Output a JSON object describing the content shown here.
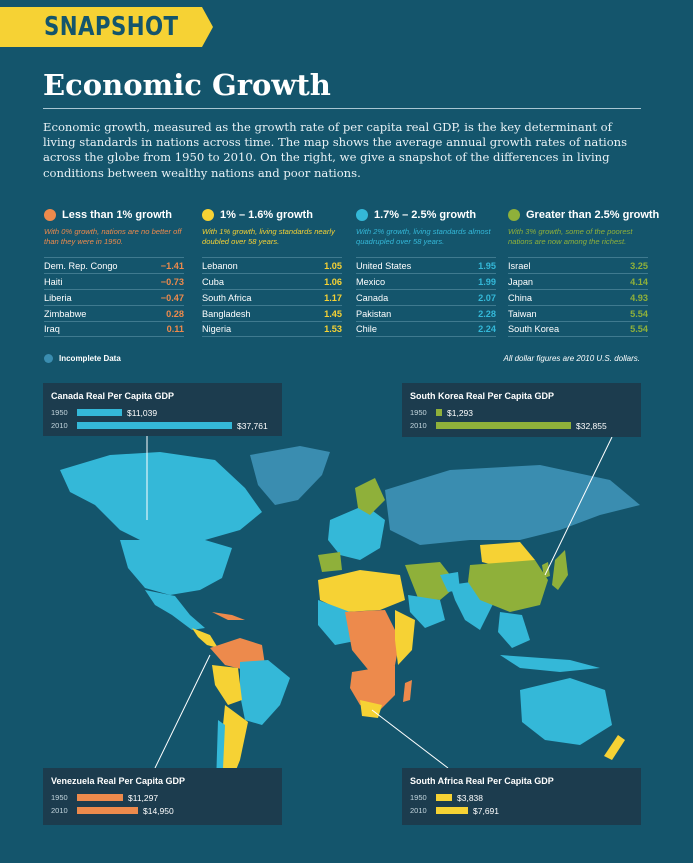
{
  "banner": "SNAPSHOT",
  "title": "Economic Growth",
  "intro": "Economic growth, measured as the growth rate of per capita real GDP, is the key determinant of living standards in nations across time. The map shows the average annual growth rates of nations across the globe from 1950 to 2010. On the right, we give a snapshot of the differences in living conditions between wealthy nations and poor nations.",
  "colors": {
    "orange": "#ed8a4c",
    "yellow": "#f6d234",
    "blue": "#34b8d8",
    "green": "#8fb03a",
    "incomplete": "#3a8db0",
    "background": "#14556c"
  },
  "categories": [
    {
      "label": "Less than 1% growth",
      "color": "#ed8a4c",
      "desc": "With 0% growth, nations are no better off than they were in 1950.",
      "rows": [
        {
          "name": "Dem. Rep. Congo",
          "value": "−1.41"
        },
        {
          "name": "Haiti",
          "value": "−0.73"
        },
        {
          "name": "Liberia",
          "value": "−0.47"
        },
        {
          "name": "Zimbabwe",
          "value": "0.28"
        },
        {
          "name": "Iraq",
          "value": "0.11"
        }
      ]
    },
    {
      "label": "1% – 1.6% growth",
      "color": "#f6d234",
      "desc": "With 1% growth, living standards nearly doubled over 58 years.",
      "rows": [
        {
          "name": "Lebanon",
          "value": "1.05"
        },
        {
          "name": "Cuba",
          "value": "1.06"
        },
        {
          "name": "South Africa",
          "value": "1.17"
        },
        {
          "name": "Bangladesh",
          "value": "1.45"
        },
        {
          "name": "Nigeria",
          "value": "1.53"
        }
      ]
    },
    {
      "label": "1.7% – 2.5% growth",
      "color": "#34b8d8",
      "desc": "With 2% growth, living standards almost quadrupled over 58 years.",
      "rows": [
        {
          "name": "United States",
          "value": "1.95"
        },
        {
          "name": "Mexico",
          "value": "1.99"
        },
        {
          "name": "Canada",
          "value": "2.07"
        },
        {
          "name": "Pakistan",
          "value": "2.28"
        },
        {
          "name": "Chile",
          "value": "2.24"
        }
      ]
    },
    {
      "label": "Greater than 2.5% growth",
      "color": "#8fb03a",
      "desc": "With 3% growth, some of the poorest nations are now among the richest.",
      "rows": [
        {
          "name": "Israel",
          "value": "3.25"
        },
        {
          "name": "Japan",
          "value": "4.14"
        },
        {
          "name": "China",
          "value": "4.93"
        },
        {
          "name": "Taiwan",
          "value": "5.54"
        },
        {
          "name": "South Korea",
          "value": "5.54"
        }
      ]
    }
  ],
  "incomplete_label": "Incomplete Data",
  "dollar_note": "All dollar figures are 2010 U.S. dollars.",
  "gdp_boxes": {
    "canada": {
      "title": "Canada Real Per Capita GDP",
      "color": "#34b8d8",
      "y1950": "1950",
      "v1950": 11039,
      "t1950": "$11,039",
      "y2010": "2010",
      "v2010": 37761,
      "t2010": "$37,761"
    },
    "korea": {
      "title": "South Korea Real Per Capita GDP",
      "color": "#8fb03a",
      "y1950": "1950",
      "v1950": 1293,
      "t1950": "$1,293",
      "y2010": "2010",
      "v2010": 32855,
      "t2010": "$32,855"
    },
    "venezuela": {
      "title": "Venezuela Real Per Capita GDP",
      "color": "#ed8a4c",
      "y1950": "1950",
      "v1950": 11297,
      "t1950": "$11,297",
      "y2010": "2010",
      "v2010": 14950,
      "t2010": "$14,950"
    },
    "southafrica": {
      "title": "South Africa Real Per Capita GDP",
      "color": "#f6d234",
      "y1950": "1950",
      "v1950": 3838,
      "t1950": "$3,838",
      "y2010": "2010",
      "v2010": 7691,
      "t2010": "$7,691"
    }
  }
}
